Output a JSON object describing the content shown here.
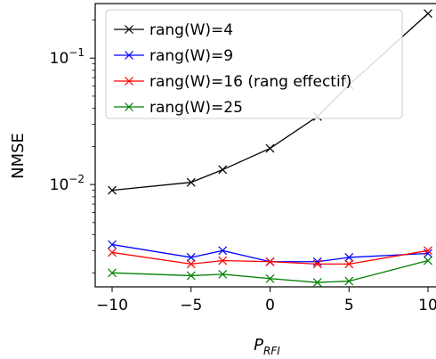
{
  "chart_data": {
    "type": "line",
    "xlabel": "P",
    "xlabel_sub": "RFI",
    "ylabel": "NMSE",
    "yscale": "log",
    "x": [
      -10,
      -5,
      -3,
      0,
      3,
      5,
      10
    ],
    "xlim": [
      -11,
      11
    ],
    "ylim": [
      0.00155,
      0.27
    ],
    "xticks": [
      -10,
      -5,
      0,
      5,
      10
    ],
    "xtick_labels": [
      "−10",
      "−5",
      "0",
      "5",
      "10"
    ],
    "yticks": [
      0.01,
      0.1
    ],
    "ytick_labels": [
      {
        "base": "10",
        "exp": "−2"
      },
      {
        "base": "10",
        "exp": "−1"
      }
    ],
    "legend_position": "top-left",
    "grid": false,
    "marker": "x",
    "series": [
      {
        "name": "rang(W)=4",
        "color": "#000000",
        "values": [
          0.009,
          0.0104,
          0.0131,
          0.0193,
          0.0345,
          0.0615,
          0.225
        ]
      },
      {
        "name": "rang(W)=9",
        "color": "#0000ff",
        "values": [
          0.00335,
          0.00265,
          0.003,
          0.00245,
          0.00245,
          0.00265,
          0.00285
        ]
      },
      {
        "name": "rang(W)=16 (rang effectif)",
        "color": "#ff0000",
        "values": [
          0.0029,
          0.00235,
          0.0025,
          0.00245,
          0.00235,
          0.00235,
          0.003
        ]
      },
      {
        "name": "rang(W)=25",
        "color": "#008000",
        "values": [
          0.002,
          0.0019,
          0.00195,
          0.0018,
          0.00168,
          0.00172,
          0.0025
        ]
      }
    ]
  }
}
